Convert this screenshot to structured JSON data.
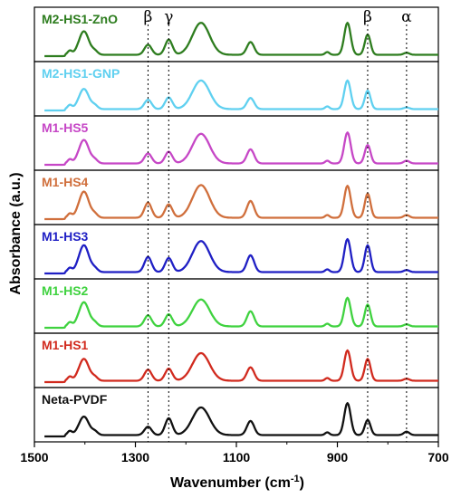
{
  "chart_data": {
    "type": "line",
    "title": "",
    "xlabel": "Wavenumber (cm",
    "xlabel_superscript": "-1",
    "xlabel_suffix": ")",
    "ylabel": "Absorbance (a.u.)",
    "xlim": [
      1500,
      700
    ],
    "x_reversed": true,
    "stacked": true,
    "grid": false,
    "x_ticks": [
      1500,
      1300,
      1100,
      900,
      700
    ],
    "x_tick_labels": [
      "1500",
      "1300",
      "1100",
      "900",
      "700"
    ],
    "reference_lines": [
      {
        "x": 1275,
        "label": "β"
      },
      {
        "x": 1234,
        "label": "γ"
      },
      {
        "x": 840,
        "label": "β"
      },
      {
        "x": 763,
        "label": "α"
      }
    ],
    "series": [
      {
        "name": "M2-HS1-ZnO",
        "color": "#2e7d1f",
        "peaks": [
          [
            1402,
            0.7
          ],
          [
            1275,
            0.3
          ],
          [
            1234,
            0.45
          ],
          [
            1170,
            0.95
          ],
          [
            1072,
            0.38
          ],
          [
            880,
            0.95
          ],
          [
            840,
            0.6
          ],
          [
            763,
            0.06
          ]
        ]
      },
      {
        "name": "M2-HS1-GNP",
        "color": "#5fd0f0",
        "peaks": [
          [
            1402,
            0.6
          ],
          [
            1275,
            0.28
          ],
          [
            1234,
            0.35
          ],
          [
            1170,
            0.85
          ],
          [
            1072,
            0.33
          ],
          [
            880,
            0.85
          ],
          [
            840,
            0.55
          ],
          [
            763,
            0.05
          ]
        ]
      },
      {
        "name": "M1-HS5",
        "color": "#c647c6",
        "peaks": [
          [
            1402,
            0.7
          ],
          [
            1275,
            0.3
          ],
          [
            1234,
            0.35
          ],
          [
            1170,
            0.88
          ],
          [
            1072,
            0.42
          ],
          [
            880,
            0.92
          ],
          [
            840,
            0.55
          ],
          [
            763,
            0.08
          ]
        ]
      },
      {
        "name": "M1-HS4",
        "color": "#d06f3c",
        "peaks": [
          [
            1402,
            0.78
          ],
          [
            1275,
            0.45
          ],
          [
            1234,
            0.4
          ],
          [
            1170,
            0.97
          ],
          [
            1072,
            0.5
          ],
          [
            880,
            0.95
          ],
          [
            840,
            0.72
          ],
          [
            763,
            0.08
          ]
        ]
      },
      {
        "name": "M1-HS3",
        "color": "#1f1fc4",
        "peaks": [
          [
            1402,
            0.8
          ],
          [
            1275,
            0.45
          ],
          [
            1234,
            0.42
          ],
          [
            1170,
            0.92
          ],
          [
            1072,
            0.5
          ],
          [
            880,
            0.98
          ],
          [
            840,
            0.8
          ],
          [
            763,
            0.06
          ]
        ]
      },
      {
        "name": "M1-HS2",
        "color": "#3fd23f",
        "peaks": [
          [
            1402,
            0.72
          ],
          [
            1275,
            0.33
          ],
          [
            1234,
            0.36
          ],
          [
            1170,
            0.8
          ],
          [
            1072,
            0.45
          ],
          [
            880,
            0.85
          ],
          [
            840,
            0.65
          ],
          [
            763,
            0.06
          ]
        ]
      },
      {
        "name": "M1-HS1",
        "color": "#d12a1e",
        "peaks": [
          [
            1402,
            0.65
          ],
          [
            1275,
            0.33
          ],
          [
            1234,
            0.36
          ],
          [
            1170,
            0.82
          ],
          [
            1072,
            0.4
          ],
          [
            880,
            0.9
          ],
          [
            840,
            0.65
          ],
          [
            763,
            0.06
          ]
        ]
      },
      {
        "name": "Neta-PVDF",
        "color": "#111111",
        "peaks": [
          [
            1402,
            0.55
          ],
          [
            1275,
            0.25
          ],
          [
            1234,
            0.5
          ],
          [
            1170,
            0.82
          ],
          [
            1072,
            0.42
          ],
          [
            880,
            0.95
          ],
          [
            840,
            0.45
          ],
          [
            763,
            0.1
          ]
        ]
      }
    ]
  }
}
